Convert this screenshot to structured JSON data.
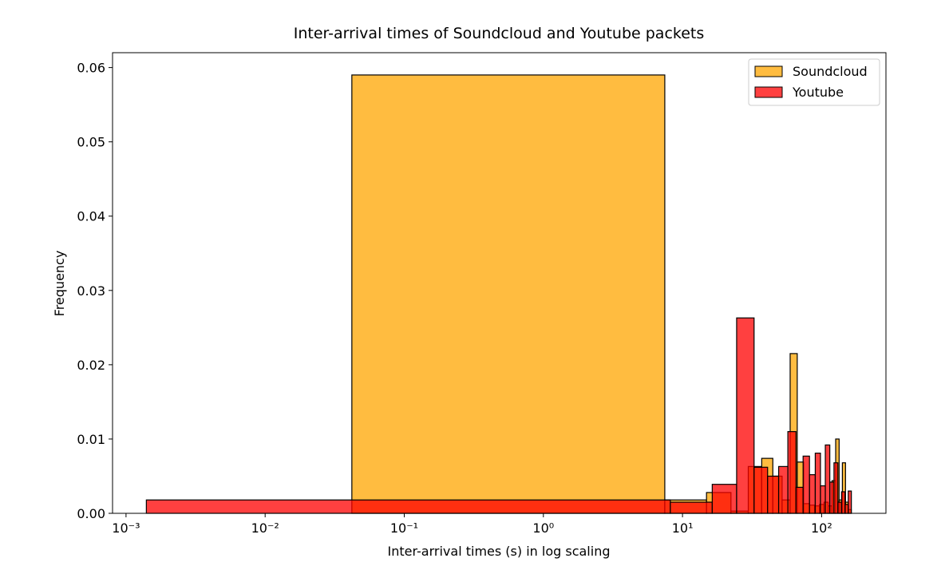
{
  "chart_data": {
    "type": "histogram",
    "title": "Inter-arrival times of Soundcloud and Youtube packets",
    "x_label": "Inter-arrival times (s) in log scaling",
    "y_label": "Frequency",
    "log_x": true,
    "legend": "upper right",
    "xlim": [
      0.0008,
      290
    ],
    "ylim": [
      0,
      0.062
    ],
    "xticks": [
      {
        "value": 0.001,
        "label": "10⁻³"
      },
      {
        "value": 0.01,
        "label": "10⁻²"
      },
      {
        "value": 0.1,
        "label": "10⁻¹"
      },
      {
        "value": 1,
        "label": "10⁰"
      },
      {
        "value": 10,
        "label": "10¹"
      },
      {
        "value": 100,
        "label": "10²"
      }
    ],
    "yticks": [
      {
        "value": 0,
        "label": "0.00"
      },
      {
        "value": 0.01,
        "label": "0.01"
      },
      {
        "value": 0.02,
        "label": "0.02"
      },
      {
        "value": 0.03,
        "label": "0.03"
      },
      {
        "value": 0.04,
        "label": "0.04"
      },
      {
        "value": 0.05,
        "label": "0.05"
      },
      {
        "value": 0.06,
        "label": "0.06"
      }
    ],
    "series": [
      {
        "name": "Soundcloud",
        "color": "#ffa500",
        "bins": [
          0.042,
          7.46,
          14.88,
          22.3,
          29.7,
          37.1,
          44.6,
          52.0,
          59.4,
          66.8,
          74.3,
          81.7,
          89.1,
          96.5,
          104.0,
          111.4,
          118.8,
          126.2,
          133.6,
          141.0,
          148.5,
          155.9,
          163.3
        ],
        "values": [
          0.059,
          0.0018,
          0.0028,
          0.0003,
          0.0063,
          0.0074,
          0.005,
          0.0018,
          0.0215,
          0.0069,
          0.0013,
          0.0011,
          0.001,
          0.0012,
          0.0015,
          0.001,
          0.0044,
          0.01,
          0.0018,
          0.0068,
          0.0015,
          0.0005
        ]
      },
      {
        "name": "Youtube",
        "color": "#ff0000",
        "bins": [
          0.0014,
          8.18,
          16.36,
          24.5,
          32.7,
          40.9,
          49.1,
          57.2,
          65.4,
          73.6,
          81.8,
          90.0,
          98.1,
          106.3,
          114.5,
          122.7,
          130.8,
          139.0,
          147.2,
          155.4,
          163.6
        ],
        "values": [
          0.0018,
          0.0015,
          0.0039,
          0.0263,
          0.0062,
          0.005,
          0.0063,
          0.011,
          0.0035,
          0.0077,
          0.0052,
          0.0081,
          0.0037,
          0.0092,
          0.0042,
          0.0068,
          0.0015,
          0.0029,
          0.0012,
          0.003
        ]
      }
    ]
  }
}
